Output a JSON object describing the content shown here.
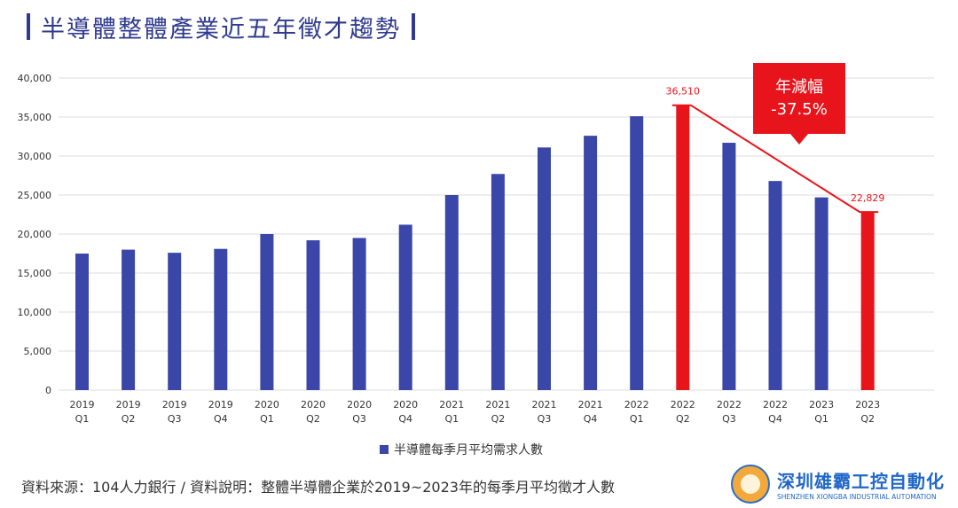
{
  "title": "半導體整體產業近五年徵才趨勢",
  "chart_data": {
    "type": "bar",
    "categories": [
      [
        "2019",
        "Q1"
      ],
      [
        "2019",
        "Q2"
      ],
      [
        "2019",
        "Q3"
      ],
      [
        "2019",
        "Q4"
      ],
      [
        "2020",
        "Q1"
      ],
      [
        "2020",
        "Q2"
      ],
      [
        "2020",
        "Q3"
      ],
      [
        "2020",
        "Q4"
      ],
      [
        "2021",
        "Q1"
      ],
      [
        "2021",
        "Q2"
      ],
      [
        "2021",
        "Q3"
      ],
      [
        "2021",
        "Q4"
      ],
      [
        "2022",
        "Q1"
      ],
      [
        "2022",
        "Q2"
      ],
      [
        "2022",
        "Q3"
      ],
      [
        "2022",
        "Q4"
      ],
      [
        "2023",
        "Q1"
      ],
      [
        "2023",
        "Q2"
      ]
    ],
    "series": [
      {
        "name": "半導體每季月平均需求人數",
        "values": [
          17500,
          18000,
          17600,
          18100,
          20000,
          19200,
          19500,
          21200,
          25000,
          27700,
          31100,
          32600,
          35100,
          36510,
          31700,
          26800,
          24700,
          22829
        ]
      }
    ],
    "highlight_indices": [
      13,
      17
    ],
    "ylim": [
      0,
      40000
    ],
    "yticks": [
      0,
      5000,
      10000,
      15000,
      20000,
      25000,
      30000,
      35000,
      40000
    ],
    "ytick_labels": [
      "0",
      "5,000",
      "10,000",
      "15,000",
      "20,000",
      "25,000",
      "30,000",
      "35,000",
      "40,000"
    ],
    "data_labels": [
      {
        "index": 13,
        "text": "36,510"
      },
      {
        "index": 17,
        "text": "22,829"
      }
    ],
    "callout": {
      "line1": "年減幅",
      "line2": "-37.5%"
    },
    "legend_position": "bottom-center"
  },
  "colors": {
    "bar": "#3a47a8",
    "highlight": "#e8141c",
    "grid": "#dcdcdc",
    "title": "#2f3a8f"
  },
  "footer": {
    "text": "資料來源：104人力銀行 / 資料說明：整體半導體企業於2019~2023年的每季月平均徵才人數"
  },
  "watermark": {
    "name_cn": "深圳雄霸工控自動化",
    "name_en": "SHENZHEN XIONGBA INDUSTRIAL AUTOMATION"
  }
}
